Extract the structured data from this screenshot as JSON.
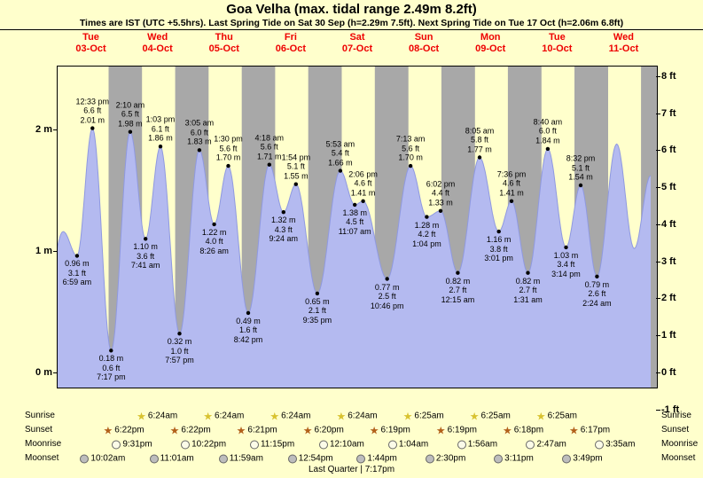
{
  "colors": {
    "background": "#ffffcc",
    "night_band": "#a8a8a8",
    "tide_fill": "#b4baf0",
    "tide_stroke": "#8f99e0",
    "day_label": "#ee0000",
    "sunrise_star": "#d8c22f",
    "sunset_star": "#b2601a",
    "moonrise_icon": "#fbfbe8",
    "moonset_icon": "#bdbdbd"
  },
  "chart_data": {
    "type": "area",
    "title": "Goa Velha (max. tidal range 2.49m 8.2ft)",
    "subtitle": "Times are IST (UTC +5.5hrs). Last Spring Tide on Sat 30 Sep (h=2.29m 7.5ft). Next Spring Tide on Tue 17 Oct (h=2.06m 6.8ft)",
    "y_axis_left": [
      "0 m",
      "1 m",
      "2 m"
    ],
    "y_axis_right": [
      "-1 ft",
      "0 ft",
      "1 ft",
      "2 ft",
      "3 ft",
      "4 ft",
      "5 ft",
      "6 ft",
      "7 ft",
      "8 ft"
    ],
    "y_axis_range_m": [
      -0.12,
      2.52
    ],
    "x_days": [
      {
        "name": "Tue",
        "date": "03-Oct"
      },
      {
        "name": "Wed",
        "date": "04-Oct"
      },
      {
        "name": "Thu",
        "date": "05-Oct"
      },
      {
        "name": "Fri",
        "date": "06-Oct"
      },
      {
        "name": "Sat",
        "date": "07-Oct"
      },
      {
        "name": "Sun",
        "date": "08-Oct"
      },
      {
        "name": "Mon",
        "date": "09-Oct"
      },
      {
        "name": "Tue",
        "date": "10-Oct"
      },
      {
        "name": "Wed",
        "date": "11-Oct"
      }
    ],
    "tide_events": [
      {
        "day": -1,
        "time": "8:30 pm",
        "height_m": 0.75,
        "kind": "shape"
      },
      {
        "day": 0,
        "time": "2:00 am",
        "height_m": 1.16,
        "kind": "shape"
      },
      {
        "day": 0,
        "time": "6:59 am",
        "height_m": 0.96,
        "kind": "low",
        "label": [
          "0.96 m",
          "3.1 ft",
          "6:59 am"
        ]
      },
      {
        "day": 0,
        "time": "12:33 pm",
        "height_m": 2.01,
        "kind": "high",
        "label": [
          "12:33 pm",
          "6.6 ft",
          "2.01 m"
        ]
      },
      {
        "day": 0,
        "time": "7:17 pm",
        "height_m": 0.18,
        "kind": "low",
        "label": [
          "0.18 m",
          "0.6 ft",
          "7:17 pm"
        ]
      },
      {
        "day": 1,
        "time": "2:10 am",
        "height_m": 1.98,
        "kind": "high",
        "label": [
          "2:10 am",
          "6.5 ft",
          "1.98 m"
        ]
      },
      {
        "day": 1,
        "time": "7:41 am",
        "height_m": 1.1,
        "kind": "low",
        "label": [
          "1.10 m",
          "3.6 ft",
          "7:41 am"
        ]
      },
      {
        "day": 1,
        "time": "1:03 pm",
        "height_m": 1.86,
        "kind": "high",
        "label": [
          "1:03 pm",
          "6.1 ft",
          "1.86 m"
        ]
      },
      {
        "day": 1,
        "time": "7:57 pm",
        "height_m": 0.32,
        "kind": "low",
        "label": [
          "0.32 m",
          "1.0 ft",
          "7:57 pm"
        ]
      },
      {
        "day": 2,
        "time": "3:05 am",
        "height_m": 1.83,
        "kind": "high",
        "label": [
          "3:05 am",
          "6.0 ft",
          "1.83 m"
        ]
      },
      {
        "day": 2,
        "time": "8:26 am",
        "height_m": 1.22,
        "kind": "low",
        "label": [
          "1.22 m",
          "4.0 ft",
          "8:26 am"
        ]
      },
      {
        "day": 2,
        "time": "1:30 pm",
        "height_m": 1.7,
        "kind": "high",
        "label": [
          "1:30 pm",
          "5.6 ft",
          "1.70 m"
        ]
      },
      {
        "day": 2,
        "time": "8:42 pm",
        "height_m": 0.49,
        "kind": "low",
        "label": [
          "0.49 m",
          "1.6 ft",
          "8:42 pm"
        ]
      },
      {
        "day": 3,
        "time": "4:18 am",
        "height_m": 1.71,
        "kind": "high",
        "label": [
          "4:18 am",
          "5.6 ft",
          "1.71 m"
        ]
      },
      {
        "day": 3,
        "time": "9:24 am",
        "height_m": 1.32,
        "kind": "low",
        "label": [
          "1.32 m",
          "4.3 ft",
          "9:24 am"
        ]
      },
      {
        "day": 3,
        "time": "1:54 pm",
        "height_m": 1.55,
        "kind": "high",
        "label": [
          "1:54 pm",
          "5.1 ft",
          "1.55 m"
        ]
      },
      {
        "day": 3,
        "time": "9:35 pm",
        "height_m": 0.65,
        "kind": "low",
        "label": [
          "0.65 m",
          "2.1 ft",
          "9:35 pm"
        ]
      },
      {
        "day": 4,
        "time": "5:53 am",
        "height_m": 1.66,
        "kind": "high",
        "label": [
          "5:53 am",
          "5.4 ft",
          "1.66 m"
        ]
      },
      {
        "day": 4,
        "time": "11:07 am",
        "height_m": 1.38,
        "kind": "low",
        "label": [
          "1.38 m",
          "4.5 ft",
          "11:07 am"
        ]
      },
      {
        "day": 4,
        "time": "2:06 pm",
        "height_m": 1.41,
        "kind": "high",
        "label": [
          "2:06 pm",
          "4.6 ft",
          "1.41 m"
        ]
      },
      {
        "day": 4,
        "time": "10:46 pm",
        "height_m": 0.77,
        "kind": "low",
        "label": [
          "0.77 m",
          "2.5 ft",
          "10:46 pm"
        ]
      },
      {
        "day": 5,
        "time": "7:13 am",
        "height_m": 1.7,
        "kind": "high",
        "label": [
          "7:13 am",
          "5.6 ft",
          "1.70 m"
        ]
      },
      {
        "day": 5,
        "time": "1:04 pm",
        "height_m": 1.28,
        "kind": "low",
        "label": [
          "1.28 m",
          "4.2 ft",
          "1:04 pm"
        ]
      },
      {
        "day": 5,
        "time": "6:02 pm",
        "height_m": 1.33,
        "kind": "high",
        "label": [
          "6:02 pm",
          "4.4 ft",
          "1.33 m"
        ]
      },
      {
        "day": 6,
        "time": "12:15 am",
        "height_m": 0.82,
        "kind": "low",
        "label": [
          "0.82 m",
          "2.7 ft",
          "12:15 am"
        ]
      },
      {
        "day": 6,
        "time": "8:05 am",
        "height_m": 1.77,
        "kind": "high",
        "label": [
          "8:05 am",
          "5.8 ft",
          "1.77 m"
        ]
      },
      {
        "day": 6,
        "time": "3:01 pm",
        "height_m": 1.16,
        "kind": "low",
        "label": [
          "1.16 m",
          "3.8 ft",
          "3:01 pm"
        ]
      },
      {
        "day": 6,
        "time": "7:36 pm",
        "height_m": 1.41,
        "kind": "high",
        "label": [
          "7:36 pm",
          "4.6 ft",
          "1.41 m"
        ]
      },
      {
        "day": 7,
        "time": "1:31 am",
        "height_m": 0.82,
        "kind": "low",
        "label": [
          "0.82 m",
          "2.7 ft",
          "1:31 am"
        ]
      },
      {
        "day": 7,
        "time": "8:40 am",
        "height_m": 1.84,
        "kind": "high",
        "label": [
          "8:40 am",
          "6.0 ft",
          "1.84 m"
        ]
      },
      {
        "day": 7,
        "time": "3:14 pm",
        "height_m": 1.03,
        "kind": "low",
        "label": [
          "1.03 m",
          "3.4 ft",
          "3:14 pm"
        ]
      },
      {
        "day": 7,
        "time": "8:32 pm",
        "height_m": 1.54,
        "kind": "high",
        "label": [
          "8:32 pm",
          "5.1 ft",
          "1.54 m"
        ]
      },
      {
        "day": 8,
        "time": "2:24 am",
        "height_m": 0.79,
        "kind": "low",
        "label": [
          "0.79 m",
          "2.6 ft",
          "2:24 am"
        ]
      },
      {
        "day": 8,
        "time": "9:30 am",
        "height_m": 1.88,
        "kind": "shape"
      },
      {
        "day": 8,
        "time": "3:50 pm",
        "height_m": 1.02,
        "kind": "shape"
      },
      {
        "day": 8,
        "time": "9:45 pm",
        "height_m": 1.62,
        "kind": "shape"
      }
    ],
    "astro": {
      "row_labels": [
        "Sunrise",
        "Sunset",
        "Moonrise",
        "Moonset"
      ],
      "sunrise": [
        {
          "day": 1,
          "time": "6:24am"
        },
        {
          "day": 2,
          "time": "6:24am"
        },
        {
          "day": 3,
          "time": "6:24am"
        },
        {
          "day": 4,
          "time": "6:24am"
        },
        {
          "day": 5,
          "time": "6:25am"
        },
        {
          "day": 6,
          "time": "6:25am"
        },
        {
          "day": 7,
          "time": "6:25am"
        }
      ],
      "sunset": [
        {
          "day": 0,
          "time": "6:22pm"
        },
        {
          "day": 1,
          "time": "6:22pm"
        },
        {
          "day": 2,
          "time": "6:21pm"
        },
        {
          "day": 3,
          "time": "6:20pm"
        },
        {
          "day": 4,
          "time": "6:19pm"
        },
        {
          "day": 5,
          "time": "6:19pm"
        },
        {
          "day": 6,
          "time": "6:18pm"
        },
        {
          "day": 7,
          "time": "6:17pm"
        }
      ],
      "moonrise": [
        {
          "day": 0,
          "time": "9:31pm"
        },
        {
          "day": 1,
          "time": "10:22pm"
        },
        {
          "day": 2,
          "time": "11:15pm"
        },
        {
          "day": 4,
          "time": "12:10am"
        },
        {
          "day": 5,
          "time": "1:04am"
        },
        {
          "day": 6,
          "time": "1:56am"
        },
        {
          "day": 7,
          "time": "2:47am"
        },
        {
          "day": 8,
          "time": "3:35am"
        }
      ],
      "moonset": [
        {
          "day": 0,
          "time": "10:02am"
        },
        {
          "day": 1,
          "time": "11:01am"
        },
        {
          "day": 2,
          "time": "11:59am"
        },
        {
          "day": 3,
          "time": "12:54pm"
        },
        {
          "day": 4,
          "time": "1:44pm"
        },
        {
          "day": 5,
          "time": "2:30pm"
        },
        {
          "day": 6,
          "time": "3:11pm"
        },
        {
          "day": 7,
          "time": "3:49pm"
        }
      ],
      "moon_phase": "Last Quarter | 7:17pm"
    }
  }
}
